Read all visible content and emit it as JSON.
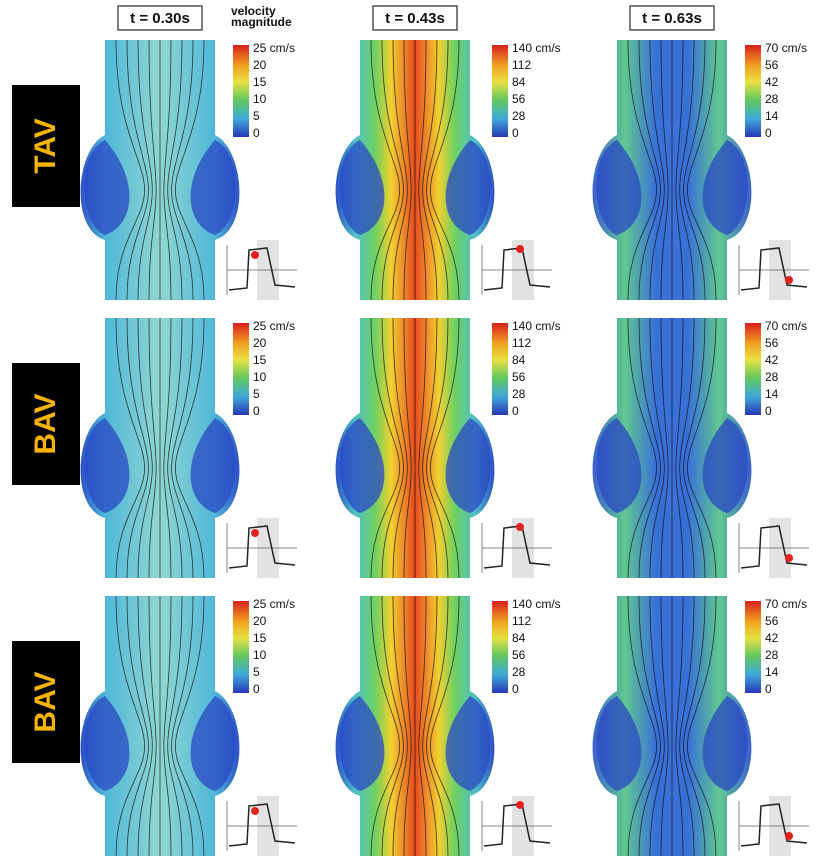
{
  "header": {
    "columns": [
      "t = 0.30s",
      "t = 0.43s",
      "t = 0.63s"
    ],
    "colorbar_title": [
      "velocity",
      "magnitude"
    ]
  },
  "rows": [
    {
      "label": "TAV",
      "panels": [
        {
          "ticks": [
            "25 cm/s",
            "20",
            "15",
            "10",
            "5",
            "0"
          ]
        },
        {
          "ticks": [
            "140 cm/s",
            "112",
            "84",
            "56",
            "28",
            "0"
          ]
        },
        {
          "ticks": [
            "70 cm/s",
            "56",
            "42",
            "28",
            "14",
            "0"
          ]
        }
      ]
    },
    {
      "label": "BAV",
      "panels": [
        {
          "ticks": [
            "25 cm/s",
            "20",
            "15",
            "10",
            "5",
            "0"
          ]
        },
        {
          "ticks": [
            "140 cm/s",
            "112",
            "84",
            "56",
            "28",
            "0"
          ]
        },
        {
          "ticks": [
            "70 cm/s",
            "56",
            "42",
            "28",
            "14",
            "0"
          ]
        }
      ]
    },
    {
      "label": "BAV",
      "panels": [
        {
          "ticks": [
            "25 cm/s",
            "20",
            "15",
            "10",
            "5",
            "0"
          ]
        },
        {
          "ticks": [
            "140 cm/s",
            "112",
            "84",
            "56",
            "28",
            "0"
          ]
        },
        {
          "ticks": [
            "70 cm/s",
            "56",
            "42",
            "28",
            "14",
            "0"
          ]
        }
      ]
    }
  ]
}
